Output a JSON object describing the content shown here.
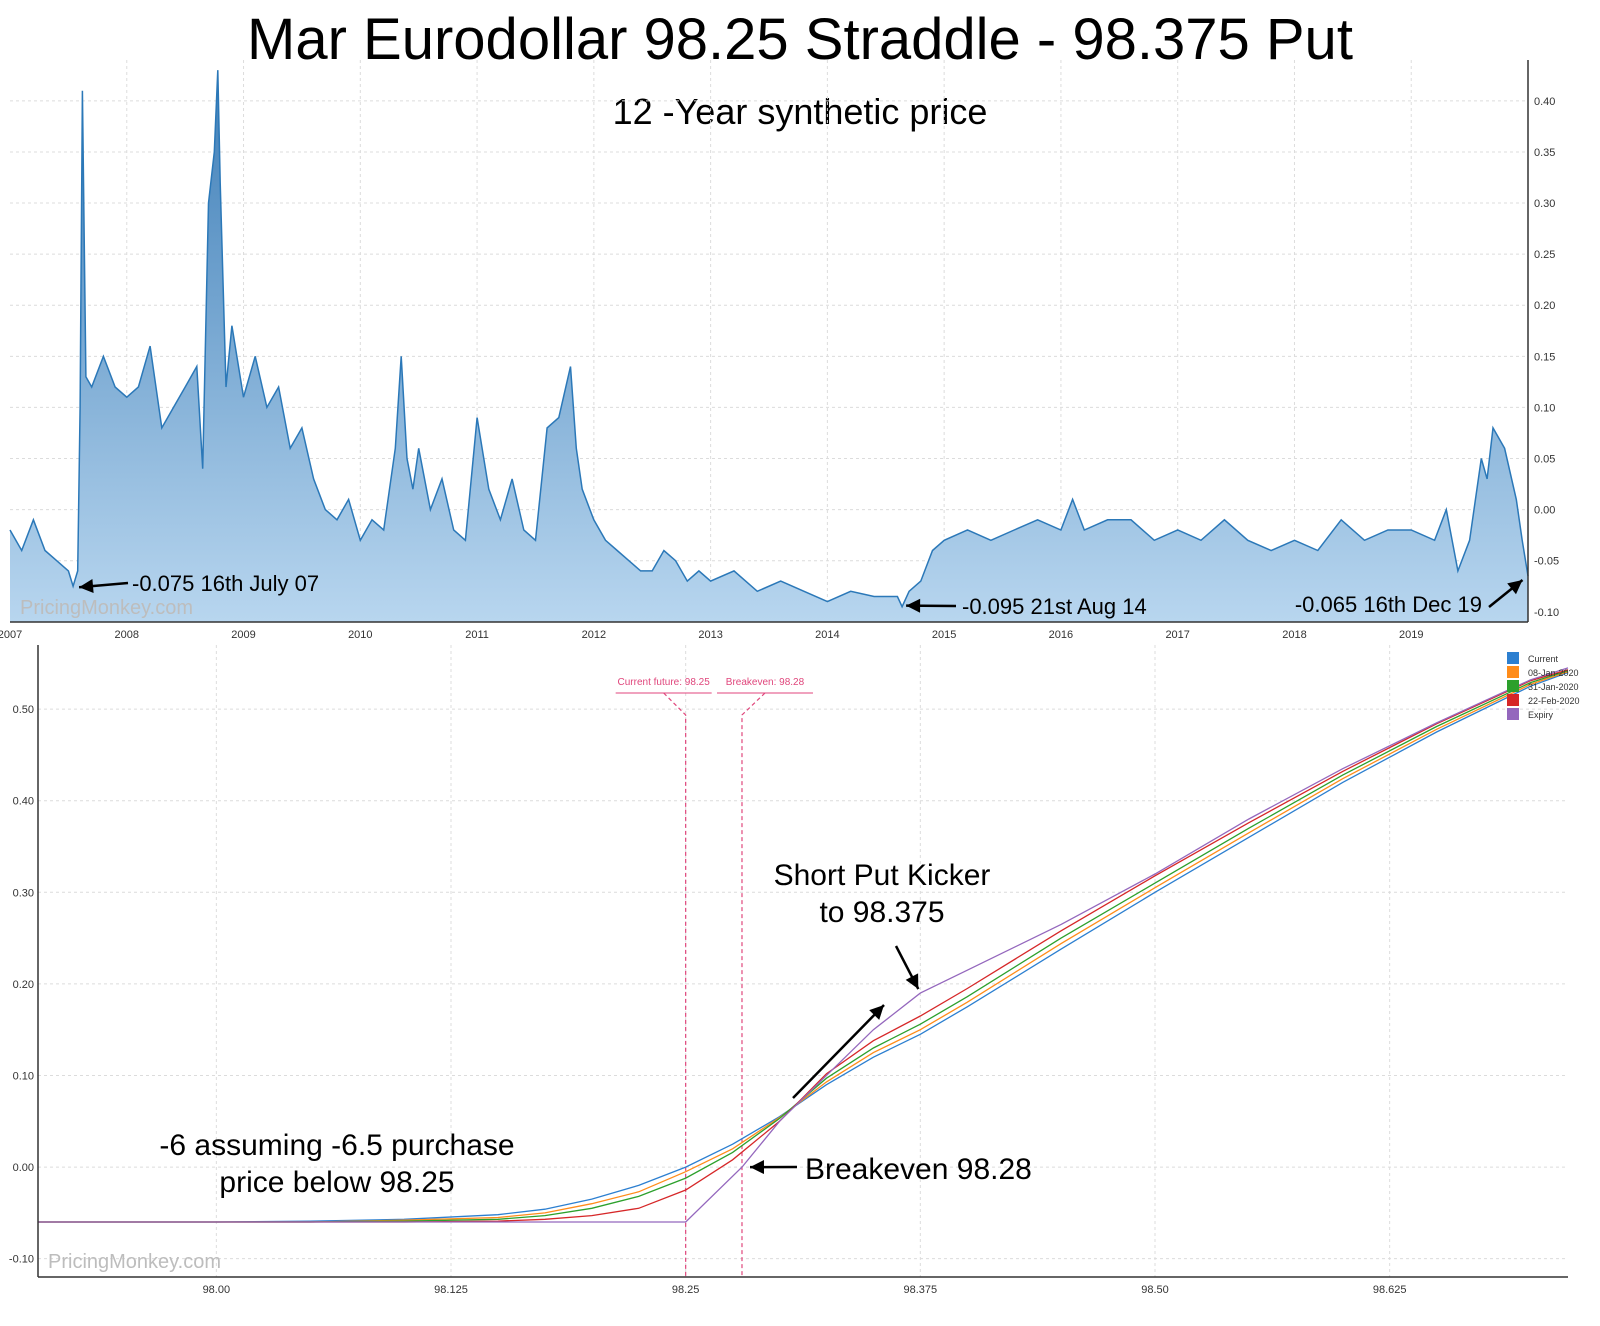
{
  "title": "Mar Eurodollar 98.25 Straddle - 98.375 Put",
  "subtitle": "12 -Year synthetic price",
  "watermark": "PricingMonkey.com",
  "chart_data": [
    {
      "type": "area",
      "x_ticks": [
        "2007",
        "2008",
        "2009",
        "2010",
        "2011",
        "2012",
        "2013",
        "2014",
        "2015",
        "2016",
        "2017",
        "2018",
        "2019"
      ],
      "y_ticks": [
        "0.40",
        "0.35",
        "0.30",
        "0.25",
        "0.20",
        "0.15",
        "0.10",
        "0.05",
        "0.00",
        "-0.05",
        "-0.10"
      ],
      "ylim": [
        -0.11,
        0.44
      ],
      "xlim": [
        2007.0,
        2020.0
      ],
      "grid": true,
      "y_axis_side": "right",
      "color": "#2b78b8",
      "fill_color": "#7fb0dc",
      "x": [
        2007.0,
        2007.1,
        2007.2,
        2007.3,
        2007.4,
        2007.5,
        2007.54,
        2007.58,
        2007.6,
        2007.62,
        2007.65,
        2007.7,
        2007.8,
        2007.9,
        2008.0,
        2008.1,
        2008.2,
        2008.3,
        2008.4,
        2008.5,
        2008.6,
        2008.65,
        2008.7,
        2008.75,
        2008.78,
        2008.8,
        2008.85,
        2008.9,
        2009.0,
        2009.1,
        2009.2,
        2009.3,
        2009.4,
        2009.5,
        2009.6,
        2009.7,
        2009.8,
        2009.9,
        2010.0,
        2010.1,
        2010.2,
        2010.3,
        2010.35,
        2010.4,
        2010.45,
        2010.5,
        2010.6,
        2010.7,
        2010.8,
        2010.9,
        2011.0,
        2011.1,
        2011.2,
        2011.3,
        2011.4,
        2011.5,
        2011.6,
        2011.7,
        2011.8,
        2011.85,
        2011.9,
        2012.0,
        2012.1,
        2012.2,
        2012.3,
        2012.4,
        2012.5,
        2012.6,
        2012.7,
        2012.8,
        2012.9,
        2013.0,
        2013.2,
        2013.4,
        2013.6,
        2013.8,
        2014.0,
        2014.2,
        2014.4,
        2014.6,
        2014.64,
        2014.7,
        2014.8,
        2014.9,
        2015.0,
        2015.2,
        2015.4,
        2015.6,
        2015.8,
        2016.0,
        2016.1,
        2016.2,
        2016.4,
        2016.6,
        2016.8,
        2017.0,
        2017.2,
        2017.4,
        2017.6,
        2017.8,
        2018.0,
        2018.2,
        2018.4,
        2018.6,
        2018.8,
        2019.0,
        2019.2,
        2019.3,
        2019.4,
        2019.5,
        2019.6,
        2019.65,
        2019.7,
        2019.8,
        2019.9,
        2019.95,
        2020.0
      ],
      "y": [
        -0.02,
        -0.04,
        -0.01,
        -0.04,
        -0.05,
        -0.06,
        -0.075,
        -0.06,
        0.1,
        0.41,
        0.13,
        0.12,
        0.15,
        0.12,
        0.11,
        0.12,
        0.16,
        0.08,
        0.1,
        0.12,
        0.14,
        0.04,
        0.3,
        0.35,
        0.43,
        0.32,
        0.12,
        0.18,
        0.11,
        0.15,
        0.1,
        0.12,
        0.06,
        0.08,
        0.03,
        0.0,
        -0.01,
        0.01,
        -0.03,
        -0.01,
        -0.02,
        0.06,
        0.15,
        0.05,
        0.02,
        0.06,
        0.0,
        0.03,
        -0.02,
        -0.03,
        0.09,
        0.02,
        -0.01,
        0.03,
        -0.02,
        -0.03,
        0.08,
        0.09,
        0.14,
        0.06,
        0.02,
        -0.01,
        -0.03,
        -0.04,
        -0.05,
        -0.06,
        -0.06,
        -0.04,
        -0.05,
        -0.07,
        -0.06,
        -0.07,
        -0.06,
        -0.08,
        -0.07,
        -0.08,
        -0.09,
        -0.08,
        -0.085,
        -0.085,
        -0.095,
        -0.08,
        -0.07,
        -0.04,
        -0.03,
        -0.02,
        -0.03,
        -0.02,
        -0.01,
        -0.02,
        0.01,
        -0.02,
        -0.01,
        -0.01,
        -0.03,
        -0.02,
        -0.03,
        -0.01,
        -0.03,
        -0.04,
        -0.03,
        -0.04,
        -0.01,
        -0.03,
        -0.02,
        -0.02,
        -0.03,
        0.0,
        -0.06,
        -0.03,
        0.05,
        0.03,
        0.08,
        0.06,
        0.01,
        -0.03,
        -0.065
      ],
      "annotations": [
        {
          "text": "-0.075 16th July 07",
          "x": 2007.54,
          "y": -0.075
        },
        {
          "text": "-0.095 21st Aug 14",
          "x": 2014.64,
          "y": -0.095
        },
        {
          "text": "-0.065 16th Dec 19",
          "x": 2019.97,
          "y": -0.065
        }
      ]
    },
    {
      "type": "line",
      "x_ticks": [
        "98.00",
        "98.125",
        "98.25",
        "98.375",
        "98.50",
        "98.625"
      ],
      "y_ticks": [
        "0.50",
        "0.40",
        "0.30",
        "0.20",
        "0.10",
        "0.00",
        "-0.10"
      ],
      "xlim": [
        97.905,
        98.72
      ],
      "ylim": [
        -0.12,
        0.57
      ],
      "grid": true,
      "legend_position": "top-right",
      "series": [
        {
          "name": "Current",
          "color": "#2c7fd0",
          "x": [
            97.905,
            98.0,
            98.05,
            98.1,
            98.15,
            98.175,
            98.2,
            98.225,
            98.25,
            98.275,
            98.3,
            98.325,
            98.35,
            98.375,
            98.4,
            98.45,
            98.5,
            98.55,
            98.6,
            98.65,
            98.7,
            98.72
          ],
          "y": [
            -0.06,
            -0.06,
            -0.059,
            -0.057,
            -0.052,
            -0.046,
            -0.035,
            -0.02,
            0.0,
            0.025,
            0.055,
            0.09,
            0.12,
            0.145,
            0.175,
            0.238,
            0.3,
            0.36,
            0.42,
            0.475,
            0.525,
            0.54
          ]
        },
        {
          "name": "08-Jan-2020",
          "color": "#ff8c1a",
          "x": [
            97.905,
            98.0,
            98.05,
            98.1,
            98.15,
            98.175,
            98.2,
            98.225,
            98.25,
            98.275,
            98.3,
            98.325,
            98.35,
            98.375,
            98.4,
            98.45,
            98.5,
            98.55,
            98.6,
            98.65,
            98.7,
            98.72
          ],
          "y": [
            -0.06,
            -0.06,
            -0.06,
            -0.058,
            -0.055,
            -0.05,
            -0.04,
            -0.027,
            -0.005,
            0.02,
            0.054,
            0.093,
            0.125,
            0.15,
            0.18,
            0.244,
            0.305,
            0.365,
            0.424,
            0.478,
            0.527,
            0.541
          ]
        },
        {
          "name": "31-Jan-2020",
          "color": "#2ca02c",
          "x": [
            97.905,
            98.0,
            98.05,
            98.1,
            98.15,
            98.175,
            98.2,
            98.225,
            98.25,
            98.275,
            98.3,
            98.325,
            98.35,
            98.375,
            98.4,
            98.45,
            98.5,
            98.55,
            98.6,
            98.65,
            98.7,
            98.72
          ],
          "y": [
            -0.06,
            -0.06,
            -0.06,
            -0.059,
            -0.057,
            -0.053,
            -0.045,
            -0.032,
            -0.012,
            0.016,
            0.053,
            0.097,
            0.13,
            0.156,
            0.186,
            0.25,
            0.31,
            0.37,
            0.428,
            0.481,
            0.529,
            0.542
          ]
        },
        {
          "name": "22-Feb-2020",
          "color": "#d62728",
          "x": [
            97.905,
            98.0,
            98.05,
            98.1,
            98.15,
            98.175,
            98.2,
            98.225,
            98.25,
            98.275,
            98.3,
            98.325,
            98.35,
            98.375,
            98.4,
            98.45,
            98.5,
            98.55,
            98.6,
            98.65,
            98.7,
            98.72
          ],
          "y": [
            -0.06,
            -0.06,
            -0.06,
            -0.06,
            -0.059,
            -0.057,
            -0.053,
            -0.045,
            -0.025,
            0.008,
            0.05,
            0.102,
            0.138,
            0.165,
            0.195,
            0.258,
            0.318,
            0.376,
            0.432,
            0.484,
            0.531,
            0.543
          ]
        },
        {
          "name": "Expiry",
          "color": "#9467bd",
          "x": [
            97.905,
            98.0,
            98.1,
            98.2,
            98.25,
            98.28,
            98.3,
            98.35,
            98.375,
            98.4,
            98.45,
            98.5,
            98.55,
            98.6,
            98.65,
            98.7,
            98.72
          ],
          "y": [
            -0.06,
            -0.06,
            -0.06,
            -0.06,
            -0.06,
            0.0,
            0.05,
            0.15,
            0.19,
            0.215,
            0.265,
            0.32,
            0.38,
            0.435,
            0.485,
            0.532,
            0.545
          ]
        }
      ],
      "markers": [
        {
          "label": "Current future: 98.25",
          "x": 98.25
        },
        {
          "label": "Breakeven: 98.28",
          "x": 98.28
        }
      ],
      "annotations": {
        "kicker_line1": "Short Put Kicker",
        "kicker_line2": "to 98.375",
        "breakeven": "Breakeven 98.28",
        "left_line1": "-6 assuming -6.5 purchase",
        "left_line2": "price below 98.25"
      }
    }
  ]
}
